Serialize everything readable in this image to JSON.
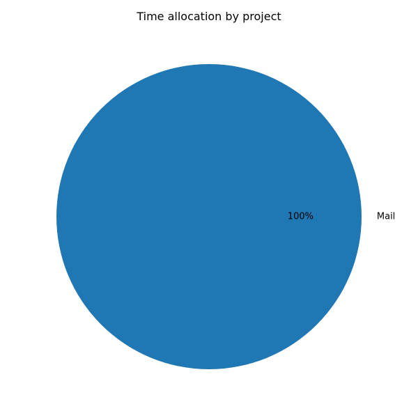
{
  "chart_data": {
    "type": "pie",
    "title": "Time allocation by project",
    "slices": [
      {
        "label": "Mail",
        "value": 100,
        "percent_label": "100%",
        "color": "#1f77b4"
      }
    ],
    "legend": "none"
  }
}
